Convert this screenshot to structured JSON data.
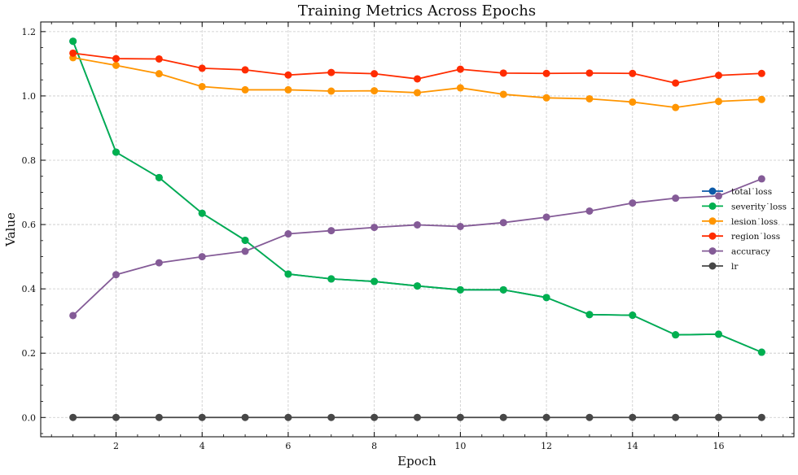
{
  "chart_data": {
    "type": "line",
    "title": "Training Metrics Across Epochs",
    "xlabel": "Epoch",
    "ylabel": "Value",
    "xlim": [
      0.25,
      17.75
    ],
    "ylim": [
      -0.06,
      1.23
    ],
    "xticks": [
      2,
      4,
      6,
      8,
      10,
      12,
      14,
      16
    ],
    "yticks": [
      0.0,
      0.2,
      0.4,
      0.6,
      0.8,
      1.0,
      1.2
    ],
    "grid": true,
    "legend_position": "center-right",
    "x": [
      1,
      2,
      3,
      4,
      5,
      6,
      7,
      8,
      9,
      10,
      11,
      12,
      13,
      14,
      15,
      16,
      17
    ],
    "series": [
      {
        "name": "total˙loss",
        "color": "#0b5aa8",
        "values": [
          1.17,
          0.825,
          0.746,
          0.635,
          0.551,
          0.446,
          0.431,
          0.423,
          0.409,
          0.397,
          0.397,
          0.373,
          0.32,
          0.318,
          0.257,
          0.259,
          0.203
        ]
      },
      {
        "name": "severity˙loss",
        "color": "#00b04f",
        "values": [
          1.17,
          0.825,
          0.746,
          0.635,
          0.551,
          0.446,
          0.431,
          0.423,
          0.409,
          0.397,
          0.397,
          0.373,
          0.32,
          0.318,
          0.257,
          0.259,
          0.203
        ]
      },
      {
        "name": "lesion˙loss",
        "color": "#ff9500",
        "values": [
          1.119,
          1.095,
          1.069,
          1.029,
          1.019,
          1.019,
          1.015,
          1.016,
          1.01,
          1.025,
          1.005,
          0.994,
          0.991,
          0.981,
          0.964,
          0.983,
          0.989
        ]
      },
      {
        "name": "region˙loss",
        "color": "#ff2c00",
        "values": [
          1.133,
          1.116,
          1.115,
          1.086,
          1.081,
          1.065,
          1.073,
          1.069,
          1.053,
          1.083,
          1.071,
          1.07,
          1.071,
          1.07,
          1.04,
          1.064,
          1.07
        ]
      },
      {
        "name": "accuracy",
        "color": "#845b97",
        "values": [
          0.317,
          0.444,
          0.481,
          0.5,
          0.517,
          0.571,
          0.581,
          0.591,
          0.599,
          0.594,
          0.606,
          0.623,
          0.642,
          0.667,
          0.682,
          0.689,
          0.742
        ]
      },
      {
        "name": "lr",
        "color": "#474747",
        "values": [
          0.0001,
          0.0001,
          0.0001,
          0.0001,
          0.0001,
          0.0001,
          0.0001,
          0.0001,
          0.0001,
          0.0001,
          0.0001,
          0.0001,
          0.0001,
          0.0001,
          0.0001,
          0.0001,
          0.0001
        ]
      }
    ]
  }
}
